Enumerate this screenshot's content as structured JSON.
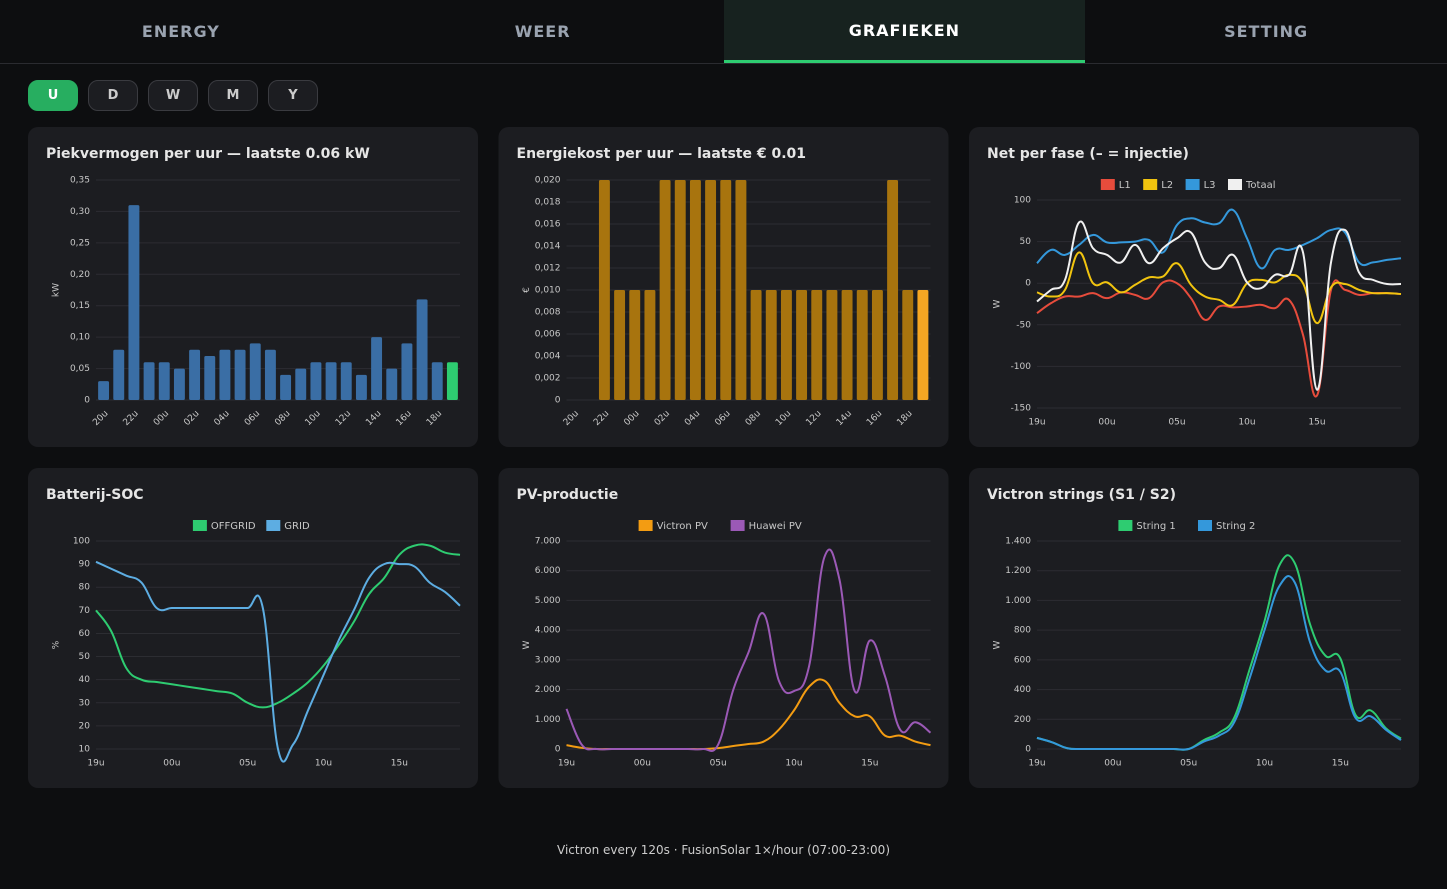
{
  "tabs": [
    {
      "label": "ENERGY",
      "active": false
    },
    {
      "label": "WEER",
      "active": false
    },
    {
      "label": "GRAFIEKEN",
      "active": true
    },
    {
      "label": "SETTING",
      "active": false
    }
  ],
  "range_buttons": [
    {
      "label": "U",
      "active": true
    },
    {
      "label": "D",
      "active": false
    },
    {
      "label": "W",
      "active": false
    },
    {
      "label": "M",
      "active": false
    },
    {
      "label": "Y",
      "active": false
    }
  ],
  "footer": "Victron every 120s · FusionSolar 1×/hour (07:00-23:00)",
  "chart_data": [
    {
      "type": "bar",
      "title": "Piekvermogen per uur — laatste 0.06 kW",
      "y_label": "kW",
      "color": "#3a6ea5",
      "last_bar_color": "#2ecc71",
      "grid": true,
      "categories": [
        "20u",
        null,
        "22u",
        null,
        "00u",
        null,
        "02u",
        null,
        "04u",
        null,
        "06u",
        null,
        "08u",
        null,
        "10u",
        null,
        "12u",
        null,
        "14u",
        null,
        "16u",
        null,
        "18u",
        null
      ],
      "values": [
        0.03,
        0.08,
        0.31,
        0.06,
        0.06,
        0.05,
        0.08,
        0.07,
        0.08,
        0.08,
        0.09,
        0.08,
        0.04,
        0.05,
        0.06,
        0.06,
        0.06,
        0.04,
        0.1,
        0.05,
        0.09,
        0.16,
        0.06,
        0.06
      ],
      "ylim": [
        0,
        0.35
      ],
      "yticks": [
        0,
        {
          "value": 0.05,
          "label": "0,05"
        },
        {
          "value": 0.1,
          "label": "0,10"
        },
        {
          "value": 0.15,
          "label": "0,15"
        },
        {
          "value": 0.2,
          "label": "0,20"
        },
        {
          "value": 0.25,
          "label": "0,25"
        },
        {
          "value": 0.3,
          "label": "0,30"
        },
        {
          "value": 0.35,
          "label": "0,35"
        }
      ]
    },
    {
      "type": "bar",
      "title": "Energiekost per uur — laatste € 0.01",
      "y_label": "€",
      "color": "#a8740e",
      "last_bar_color": "#f5a623",
      "grid": true,
      "categories": [
        "20u",
        null,
        "22u",
        null,
        "00u",
        null,
        "02u",
        null,
        "04u",
        null,
        "06u",
        null,
        "08u",
        null,
        "10u",
        null,
        "12u",
        null,
        "14u",
        null,
        "16u",
        null,
        "18u",
        null
      ],
      "values": [
        0,
        0,
        0.02,
        0.01,
        0.01,
        0.01,
        0.02,
        0.02,
        0.02,
        0.02,
        0.02,
        0.02,
        0.01,
        0.01,
        0.01,
        0.01,
        0.01,
        0.01,
        0.01,
        0.01,
        0.01,
        0.02,
        0.01,
        0.01
      ],
      "ylim": [
        0,
        0.02
      ],
      "yticks": [
        0,
        {
          "value": 0.002,
          "label": "0,002"
        },
        {
          "value": 0.004,
          "label": "0,004"
        },
        {
          "value": 0.006,
          "label": "0,006"
        },
        {
          "value": 0.008,
          "label": "0,008"
        },
        {
          "value": 0.01,
          "label": "0,010"
        },
        {
          "value": 0.012,
          "label": "0,012"
        },
        {
          "value": 0.014,
          "label": "0,014"
        },
        {
          "value": 0.016,
          "label": "0,016"
        },
        {
          "value": 0.018,
          "label": "0,018"
        },
        {
          "value": 0.02,
          "label": "0,020"
        }
      ]
    },
    {
      "type": "line",
      "title": "Net per fase (– = injectie)",
      "y_label": "W",
      "grid": true,
      "categories": [
        "19u",
        null,
        null,
        null,
        null,
        "00u",
        null,
        null,
        null,
        null,
        "05u",
        null,
        null,
        null,
        null,
        "10u",
        null,
        null,
        null,
        null,
        "15u",
        null,
        null,
        null,
        null,
        null,
        null
      ],
      "series": [
        {
          "name": "L1",
          "color": "#e74c3c",
          "values": [
            -36,
            -24,
            -16,
            -16,
            -12,
            -18,
            -11,
            -14,
            -18,
            1,
            0,
            -18,
            -44,
            -28,
            -29,
            -28,
            -26,
            -30,
            -20,
            -62,
            -135,
            -8,
            -8,
            -14,
            -12,
            -12,
            -13
          ]
        },
        {
          "name": "L2",
          "color": "#f1c40f",
          "values": [
            -11,
            -16,
            -8,
            37,
            0,
            1,
            -11,
            -2,
            7,
            8,
            24,
            -2,
            -16,
            -20,
            -26,
            0,
            4,
            1,
            10,
            0,
            -48,
            -5,
            -1,
            -8,
            -12,
            -12,
            -13
          ]
        },
        {
          "name": "L3",
          "color": "#3498db",
          "values": [
            24,
            40,
            34,
            46,
            58,
            49,
            49,
            50,
            52,
            37,
            70,
            78,
            73,
            72,
            88,
            54,
            18,
            40,
            40,
            46,
            54,
            64,
            61,
            25,
            25,
            28,
            30
          ]
        },
        {
          "name": "Totaal",
          "color": "#f0f0f0",
          "values": [
            -22,
            -8,
            4,
            73,
            42,
            34,
            25,
            46,
            24,
            42,
            54,
            61,
            25,
            18,
            34,
            1,
            -6,
            10,
            10,
            37,
            -128,
            25,
            64,
            13,
            4,
            -1,
            -1
          ]
        }
      ],
      "ylim": [
        -150,
        100
      ],
      "yticks": [
        -150,
        -100,
        -50,
        0,
        50,
        100
      ]
    },
    {
      "type": "line",
      "title": "Batterij-SOC",
      "y_label": "%",
      "grid": true,
      "categories": [
        "19u",
        null,
        null,
        null,
        null,
        "00u",
        null,
        null,
        null,
        null,
        "05u",
        null,
        null,
        null,
        null,
        "10u",
        null,
        null,
        null,
        null,
        "15u",
        null,
        null,
        null,
        null
      ],
      "series": [
        {
          "name": "OFFGRID",
          "color": "#2ecc71",
          "values": [
            70,
            61,
            45,
            40,
            39,
            38,
            37,
            36,
            35,
            34,
            30,
            28,
            30,
            34,
            39,
            46,
            55,
            65,
            77,
            84,
            94,
            98,
            98,
            95,
            94
          ]
        },
        {
          "name": "GRID",
          "color": "#5dade2",
          "values": [
            91,
            88,
            85,
            82,
            71,
            71,
            71,
            71,
            71,
            71,
            71,
            71,
            10,
            12,
            27,
            42,
            57,
            70,
            84,
            90,
            90,
            89,
            82,
            78,
            72
          ]
        }
      ],
      "ylim": [
        10,
        100
      ],
      "yticks": [
        10,
        20,
        30,
        40,
        50,
        60,
        70,
        80,
        90,
        100
      ]
    },
    {
      "type": "line",
      "title": "PV-productie",
      "y_label": "W",
      "grid": true,
      "categories": [
        "19u",
        null,
        null,
        null,
        null,
        "00u",
        null,
        null,
        null,
        null,
        "05u",
        null,
        null,
        null,
        null,
        "10u",
        null,
        null,
        null,
        null,
        "15u",
        null,
        null,
        null,
        null
      ],
      "series": [
        {
          "name": "Victron PV",
          "color": "#f39c12",
          "values": [
            130,
            40,
            0,
            0,
            0,
            0,
            0,
            0,
            0,
            0,
            30,
            100,
            170,
            250,
            650,
            1300,
            2100,
            2300,
            1550,
            1100,
            1100,
            450,
            450,
            250,
            130
          ]
        },
        {
          "name": "Huawei PV",
          "color": "#9b59b6",
          "values": [
            1350,
            150,
            0,
            0,
            0,
            0,
            0,
            0,
            0,
            0,
            150,
            2000,
            3250,
            4550,
            2300,
            1950,
            2800,
            6450,
            5700,
            1950,
            3650,
            2450,
            650,
            900,
            550
          ]
        }
      ],
      "ylim": [
        0,
        7000
      ],
      "yticks": [
        0,
        {
          "value": 1000,
          "label": "1.000"
        },
        {
          "value": 2000,
          "label": "2.000"
        },
        {
          "value": 3000,
          "label": "3.000"
        },
        {
          "value": 4000,
          "label": "4.000"
        },
        {
          "value": 5000,
          "label": "5.000"
        },
        {
          "value": 6000,
          "label": "6.000"
        },
        {
          "value": 7000,
          "label": "7.000"
        }
      ]
    },
    {
      "type": "line",
      "title": "Victron strings (S1 / S2)",
      "y_label": "W",
      "grid": true,
      "categories": [
        "19u",
        null,
        null,
        null,
        null,
        "00u",
        null,
        null,
        null,
        null,
        "05u",
        null,
        null,
        null,
        null,
        "10u",
        null,
        null,
        null,
        null,
        "15u",
        null,
        null,
        null,
        null
      ],
      "series": [
        {
          "name": "String 1",
          "color": "#2ecc71",
          "values": [
            75,
            45,
            5,
            0,
            0,
            0,
            0,
            0,
            0,
            0,
            0,
            60,
            110,
            210,
            530,
            860,
            1240,
            1250,
            840,
            630,
            610,
            230,
            260,
            140,
            70
          ]
        },
        {
          "name": "String 2",
          "color": "#3498db",
          "values": [
            75,
            45,
            5,
            0,
            0,
            0,
            0,
            0,
            0,
            0,
            0,
            50,
            90,
            180,
            470,
            800,
            1100,
            1120,
            720,
            530,
            520,
            210,
            220,
            130,
            60
          ]
        }
      ],
      "ylim": [
        0,
        1400
      ],
      "yticks": [
        0,
        200,
        400,
        600,
        800,
        {
          "value": 1000,
          "label": "1.000"
        },
        {
          "value": 1200,
          "label": "1.200"
        },
        {
          "value": 1400,
          "label": "1.400"
        }
      ]
    }
  ]
}
